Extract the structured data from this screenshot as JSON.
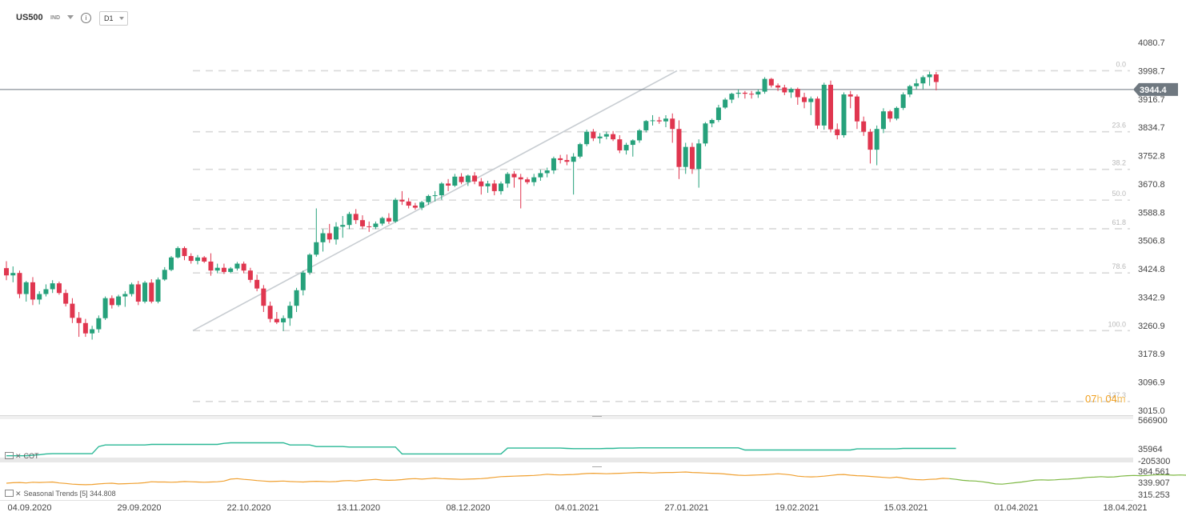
{
  "header": {
    "symbol": "US500",
    "type": "IND",
    "timeframe": "D1"
  },
  "countdown": {
    "hours": "07",
    "h": "h",
    "minutes": "04",
    "m": "m"
  },
  "price_axis": {
    "ticks": [
      "4080.7",
      "3998.7",
      "3916.7",
      "3834.7",
      "3752.8",
      "3670.8",
      "3588.8",
      "3506.8",
      "3424.8",
      "3342.9",
      "3260.9",
      "3178.9",
      "3096.9",
      "3015.0"
    ],
    "current": "3944.4"
  },
  "cot_axis": {
    "ticks": [
      "566900",
      "35964",
      "-205300"
    ]
  },
  "seasonal_axis": {
    "ticks": [
      "364.561",
      "339.907",
      "315.253"
    ]
  },
  "x_axis": {
    "labels": [
      "04.09.2020",
      "29.09.2020",
      "22.10.2020",
      "13.11.2020",
      "08.12.2020",
      "04.01.2021",
      "27.01.2021",
      "19.02.2021",
      "15.03.2021",
      "01.04.2021",
      "18.04.2021"
    ]
  },
  "fib_levels": [
    "0.0",
    "23.6",
    "38.2",
    "50.0",
    "61.8",
    "78.6",
    "100.0",
    "127.3"
  ],
  "indicators": {
    "cot": "COT",
    "seasonal": "Seasonal  Trends  [5]  344.808"
  },
  "colors": {
    "up": "#26a17b",
    "down": "#e0364f",
    "cot_line": "#2ab896",
    "seasonal": "#f0a030",
    "seasonal_forecast": "#7db843",
    "trend": "#c8cdd2"
  },
  "chart_data": {
    "type": "candlestick",
    "symbol": "US500",
    "timeframe": "D1",
    "ylim": [
      3015.0,
      4080.7
    ],
    "ohlc": [
      [
        3427,
        3447,
        3392,
        3406
      ],
      [
        3406,
        3432,
        3386,
        3413
      ],
      [
        3413,
        3420,
        3340,
        3352
      ],
      [
        3352,
        3390,
        3330,
        3386
      ],
      [
        3386,
        3401,
        3320,
        3336
      ],
      [
        3336,
        3360,
        3322,
        3352
      ],
      [
        3352,
        3380,
        3345,
        3366
      ],
      [
        3366,
        3392,
        3355,
        3383
      ],
      [
        3383,
        3388,
        3350,
        3355
      ],
      [
        3355,
        3365,
        3316,
        3324
      ],
      [
        3324,
        3340,
        3268,
        3283
      ],
      [
        3283,
        3300,
        3228,
        3268
      ],
      [
        3268,
        3280,
        3228,
        3238
      ],
      [
        3238,
        3260,
        3220,
        3250
      ],
      [
        3250,
        3290,
        3240,
        3282
      ],
      [
        3282,
        3345,
        3277,
        3340
      ],
      [
        3340,
        3348,
        3310,
        3320
      ],
      [
        3320,
        3350,
        3315,
        3345
      ],
      [
        3345,
        3360,
        3315,
        3352
      ],
      [
        3352,
        3385,
        3345,
        3380
      ],
      [
        3380,
        3390,
        3320,
        3330
      ],
      [
        3330,
        3390,
        3325,
        3385
      ],
      [
        3385,
        3395,
        3325,
        3330
      ],
      [
        3330,
        3400,
        3325,
        3394
      ],
      [
        3394,
        3430,
        3390,
        3422
      ],
      [
        3422,
        3462,
        3418,
        3458
      ],
      [
        3458,
        3490,
        3455,
        3485
      ],
      [
        3485,
        3490,
        3450,
        3462
      ],
      [
        3462,
        3470,
        3440,
        3448
      ],
      [
        3448,
        3465,
        3438,
        3458
      ],
      [
        3458,
        3462,
        3442,
        3446
      ],
      [
        3446,
        3470,
        3405,
        3420
      ],
      [
        3420,
        3440,
        3412,
        3428
      ],
      [
        3428,
        3440,
        3410,
        3416
      ],
      [
        3416,
        3430,
        3412,
        3426
      ],
      [
        3426,
        3445,
        3420,
        3440
      ],
      [
        3440,
        3446,
        3412,
        3420
      ],
      [
        3420,
        3428,
        3385,
        3393
      ],
      [
        3393,
        3408,
        3360,
        3368
      ],
      [
        3368,
        3378,
        3300,
        3318
      ],
      [
        3318,
        3330,
        3270,
        3280
      ],
      [
        3280,
        3300,
        3265,
        3270
      ],
      [
        3270,
        3290,
        3245,
        3282
      ],
      [
        3282,
        3330,
        3260,
        3318
      ],
      [
        3318,
        3370,
        3300,
        3363
      ],
      [
        3363,
        3420,
        3348,
        3414
      ],
      [
        3414,
        3470,
        3408,
        3466
      ],
      [
        3466,
        3600,
        3460,
        3502
      ],
      [
        3502,
        3540,
        3475,
        3528
      ],
      [
        3528,
        3555,
        3500,
        3510
      ],
      [
        3510,
        3560,
        3495,
        3547
      ],
      [
        3547,
        3578,
        3515,
        3552
      ],
      [
        3552,
        3590,
        3540,
        3584
      ],
      [
        3584,
        3598,
        3555,
        3566
      ],
      [
        3566,
        3580,
        3540,
        3548
      ],
      [
        3548,
        3562,
        3532,
        3546
      ],
      [
        3546,
        3562,
        3540,
        3556
      ],
      [
        3556,
        3576,
        3550,
        3572
      ],
      [
        3572,
        3586,
        3555,
        3562
      ],
      [
        3562,
        3630,
        3558,
        3625
      ],
      [
        3625,
        3650,
        3610,
        3620
      ],
      [
        3620,
        3630,
        3600,
        3608
      ],
      [
        3608,
        3616,
        3596,
        3602
      ],
      [
        3602,
        3622,
        3595,
        3618
      ],
      [
        3618,
        3640,
        3610,
        3636
      ],
      [
        3636,
        3650,
        3620,
        3638
      ],
      [
        3638,
        3676,
        3625,
        3672
      ],
      [
        3672,
        3685,
        3650,
        3666
      ],
      [
        3666,
        3700,
        3662,
        3692
      ],
      [
        3692,
        3702,
        3670,
        3676
      ],
      [
        3676,
        3698,
        3665,
        3695
      ],
      [
        3695,
        3705,
        3670,
        3678
      ],
      [
        3678,
        3688,
        3640,
        3664
      ],
      [
        3664,
        3680,
        3645,
        3672
      ],
      [
        3672,
        3682,
        3638,
        3650
      ],
      [
        3650,
        3678,
        3640,
        3672
      ],
      [
        3672,
        3705,
        3660,
        3700
      ],
      [
        3700,
        3708,
        3660,
        3690
      ],
      [
        3690,
        3700,
        3600,
        3684
      ],
      [
        3684,
        3690,
        3670,
        3676
      ],
      [
        3676,
        3700,
        3665,
        3690
      ],
      [
        3690,
        3712,
        3680,
        3702
      ],
      [
        3702,
        3718,
        3690,
        3710
      ],
      [
        3710,
        3750,
        3700,
        3745
      ],
      [
        3745,
        3755,
        3730,
        3740
      ],
      [
        3740,
        3756,
        3725,
        3735
      ],
      [
        3735,
        3760,
        3640,
        3750
      ],
      [
        3750,
        3790,
        3745,
        3786
      ],
      [
        3786,
        3828,
        3780,
        3822
      ],
      [
        3822,
        3830,
        3795,
        3803
      ],
      [
        3803,
        3818,
        3788,
        3808
      ],
      [
        3808,
        3822,
        3800,
        3815
      ],
      [
        3815,
        3824,
        3795,
        3800
      ],
      [
        3800,
        3812,
        3760,
        3768
      ],
      [
        3768,
        3790,
        3756,
        3784
      ],
      [
        3784,
        3800,
        3750,
        3797
      ],
      [
        3797,
        3830,
        3790,
        3826
      ],
      [
        3826,
        3856,
        3820,
        3853
      ],
      [
        3853,
        3870,
        3840,
        3855
      ],
      [
        3855,
        3865,
        3845,
        3852
      ],
      [
        3852,
        3870,
        3835,
        3860
      ],
      [
        3860,
        3875,
        3790,
        3830
      ],
      [
        3830,
        3855,
        3685,
        3720
      ],
      [
        3720,
        3790,
        3700,
        3778
      ],
      [
        3778,
        3790,
        3700,
        3714
      ],
      [
        3714,
        3800,
        3660,
        3788
      ],
      [
        3788,
        3850,
        3780,
        3846
      ],
      [
        3846,
        3860,
        3835,
        3856
      ],
      [
        3856,
        3900,
        3850,
        3892
      ],
      [
        3892,
        3920,
        3888,
        3915
      ],
      [
        3915,
        3935,
        3905,
        3932
      ],
      [
        3932,
        3945,
        3920,
        3935
      ],
      [
        3935,
        3940,
        3918,
        3932
      ],
      [
        3932,
        3940,
        3918,
        3930
      ],
      [
        3930,
        3945,
        3920,
        3938
      ],
      [
        3938,
        3980,
        3932,
        3975
      ],
      [
        3975,
        3978,
        3950,
        3956
      ],
      [
        3956,
        3962,
        3940,
        3950
      ],
      [
        3950,
        3958,
        3928,
        3936
      ],
      [
        3936,
        3950,
        3920,
        3946
      ],
      [
        3946,
        3950,
        3900,
        3922
      ],
      [
        3922,
        3935,
        3890,
        3908
      ],
      [
        3908,
        3924,
        3870,
        3918
      ],
      [
        3918,
        3924,
        3830,
        3840
      ],
      [
        3840,
        3964,
        3828,
        3958
      ],
      [
        3958,
        3970,
        3820,
        3829
      ],
      [
        3829,
        3846,
        3800,
        3812
      ],
      [
        3812,
        3936,
        3805,
        3930
      ],
      [
        3930,
        3940,
        3890,
        3924
      ],
      [
        3924,
        3930,
        3830,
        3852
      ],
      [
        3852,
        3866,
        3810,
        3822
      ],
      [
        3822,
        3830,
        3730,
        3770
      ],
      [
        3770,
        3840,
        3725,
        3830
      ],
      [
        3830,
        3890,
        3818,
        3881
      ],
      [
        3881,
        3885,
        3850,
        3860
      ],
      [
        3860,
        3895,
        3855,
        3891
      ],
      [
        3891,
        3936,
        3885,
        3930
      ],
      [
        3930,
        3958,
        3922,
        3954
      ],
      [
        3954,
        3975,
        3944,
        3962
      ],
      [
        3962,
        3985,
        3945,
        3980
      ],
      [
        3980,
        3996,
        3955,
        3988
      ],
      [
        3988,
        3995,
        3942,
        3966
      ]
    ],
    "current_price": 3944.4,
    "fibonacci": {
      "levels_pct": [
        0.0,
        23.6,
        38.2,
        50.0,
        61.8,
        78.6,
        100.0,
        127.3
      ],
      "prices": [
        3998.7,
        3822.0,
        3713.0,
        3624.0,
        3541.0,
        3413.0,
        3246.0,
        3041.0
      ]
    },
    "trendline": [
      {
        "index": 27,
        "price": 3246
      },
      {
        "index": 102,
        "price": 3998.7
      }
    ],
    "cot": {
      "ylim": [
        -205300,
        566900
      ],
      "values": [
        -95000,
        -95000,
        -95000,
        -95000,
        -85000,
        -75000,
        -60000,
        -55000,
        -55000,
        -55000,
        -55000,
        -55000,
        -55000,
        -55000,
        80000,
        110000,
        110000,
        110000,
        110000,
        110000,
        110000,
        110000,
        120000,
        120000,
        120000,
        120000,
        120000,
        120000,
        120000,
        120000,
        120000,
        120000,
        120000,
        140000,
        150000,
        150000,
        150000,
        150000,
        150000,
        150000,
        150000,
        150000,
        150000,
        110000,
        110000,
        110000,
        110000,
        80000,
        80000,
        80000,
        80000,
        80000,
        70000,
        70000,
        70000,
        70000,
        70000,
        70000,
        70000,
        70000,
        -60000,
        -60000,
        -60000,
        -60000,
        -60000,
        -60000,
        -60000,
        -60000,
        -60000,
        -60000,
        -60000,
        -60000,
        -60000,
        -60000,
        -60000,
        -60000,
        50000,
        50000,
        50000,
        50000,
        50000,
        50000,
        50000,
        50000,
        50000,
        45000,
        40000,
        40000,
        40000,
        40000,
        40000,
        45000,
        45000,
        50000,
        50000,
        50000,
        55000,
        55000,
        55000,
        55000,
        55000,
        55000,
        55000,
        55000,
        55000,
        55000,
        55000,
        55000,
        55000,
        55000,
        55000,
        55000,
        15000,
        15000,
        15000,
        15000,
        15000,
        15000,
        15000,
        15000,
        15000,
        15000,
        15000,
        15000,
        15000,
        15000,
        15000,
        15000,
        15000,
        35000,
        35000,
        35000,
        35000,
        35000,
        35000,
        35000,
        45000,
        45000,
        45000,
        45000,
        45000,
        45000,
        45000,
        45000,
        45000
      ]
    },
    "seasonal": {
      "ylim": [
        315.253,
        364.561
      ],
      "value": 344.808,
      "values": [
        341.5,
        342.5,
        343,
        342,
        343.5,
        343,
        343.5,
        344,
        342,
        341,
        339.5,
        339,
        338.5,
        339,
        340,
        341,
        341.5,
        340,
        340.5,
        341,
        341.5,
        342.5,
        344.5,
        344,
        344,
        343.5,
        344,
        345,
        344.5,
        344,
        343.5,
        344,
        344.5,
        346,
        350,
        351,
        349.5,
        348.5,
        347,
        346,
        345,
        345.5,
        346,
        345,
        344.5,
        344,
        345,
        345.5,
        345,
        344.5,
        345,
        346.5,
        347,
        346,
        347.5,
        348.5,
        349.5,
        348,
        347.5,
        348,
        349,
        350.5,
        351,
        350,
        351,
        352,
        351,
        350.5,
        350,
        349.5,
        350,
        350.5,
        351,
        352,
        353.5,
        355,
        355.5,
        356,
        356.5,
        357,
        357.5,
        358.5,
        360,
        359,
        358.5,
        359,
        359.5,
        360.5,
        361.5,
        362,
        361.5,
        361,
        361.5,
        362,
        362.5,
        363,
        363.5,
        363,
        362.5,
        363,
        363.5,
        363.5,
        364,
        364.5,
        363.5,
        363,
        362.5,
        362,
        361.5,
        360.5,
        359,
        358,
        357.5,
        358,
        358.5,
        359,
        360,
        361,
        360,
        358.5,
        356,
        355,
        354.5,
        355,
        356,
        357.5,
        359,
        359.5,
        358,
        357,
        356.5,
        355.5,
        354.5,
        353.5,
        352.5,
        354,
        352,
        350,
        349,
        348.5,
        349.5,
        350,
        351.5,
        351
      ],
      "forecast": [
        351,
        349.5,
        347.5,
        346.5,
        346,
        344.5,
        342.5,
        340,
        339.5,
        341,
        342.5,
        344,
        346,
        348,
        348.5,
        348,
        348.5,
        349.5,
        350,
        351,
        352,
        353.5,
        354,
        355,
        354,
        354.5,
        356,
        357,
        357.5,
        357,
        357.5,
        358.5,
        359,
        358.5,
        358,
        358.5,
        358,
        357.5,
        356,
        355.5,
        356,
        357,
        358,
        358.5,
        358,
        358.5,
        359.5,
        360.5,
        361,
        362,
        362.5,
        362,
        361.5,
        362.5,
        363,
        362
      ]
    }
  }
}
